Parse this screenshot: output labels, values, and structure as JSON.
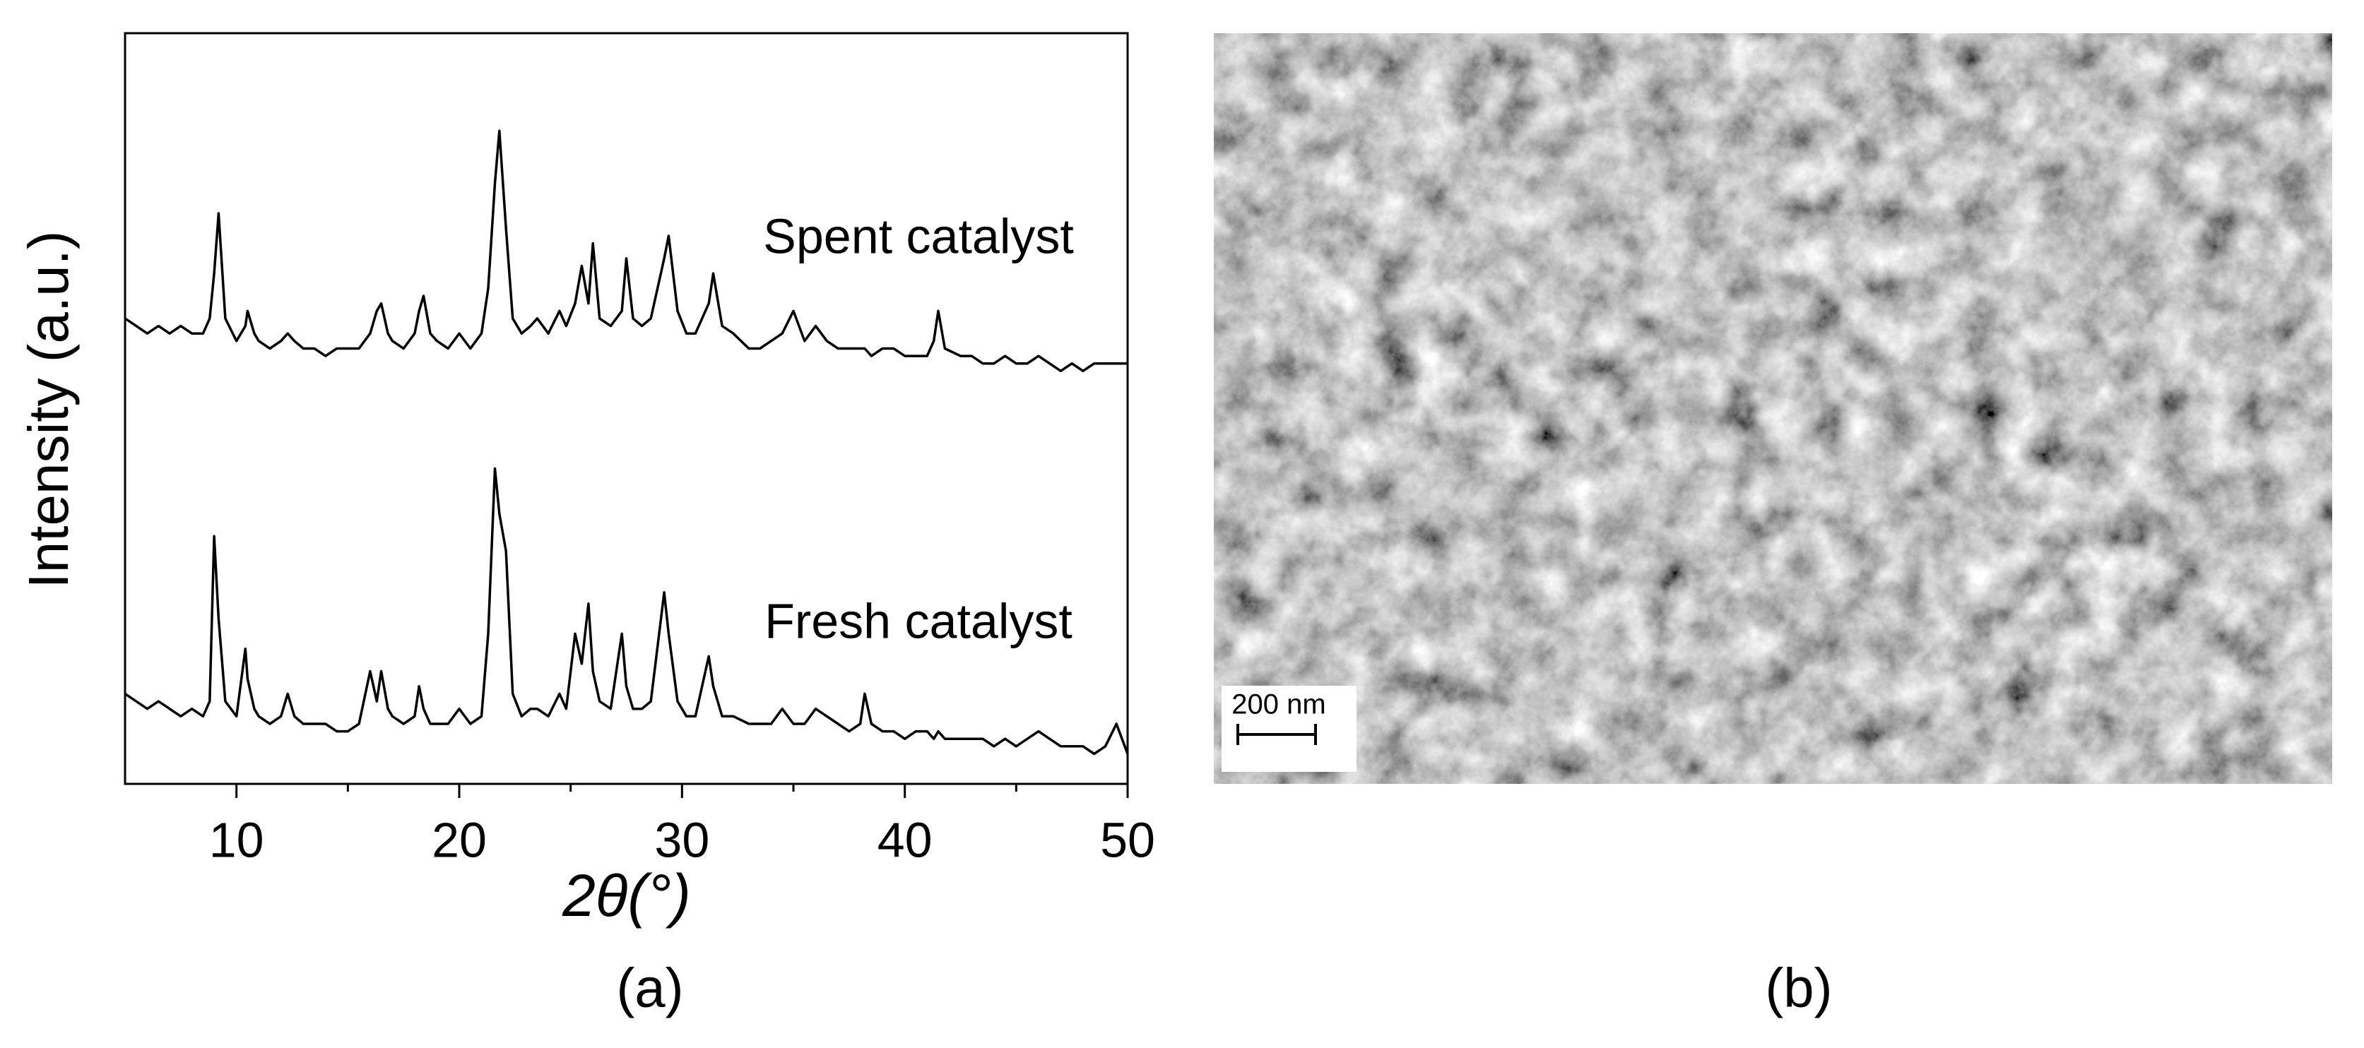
{
  "chart_data": {
    "type": "line",
    "ylabel": "Intensity (a.u.)",
    "xlabel": "2θ(°)",
    "panel_label": "(a)",
    "x": [
      5,
      5.5,
      6,
      6.5,
      7,
      7.5,
      8,
      8.5,
      8.8,
      9.0,
      9.2,
      9.5,
      10,
      10.4,
      10.5,
      10.8,
      11,
      11.5,
      12,
      12.3,
      12.6,
      13,
      13.5,
      14,
      14.5,
      15,
      15.5,
      16,
      16.3,
      16.5,
      16.8,
      17,
      17.5,
      18,
      18.2,
      18.4,
      18.7,
      19,
      19.5,
      20,
      20.5,
      21,
      21.3,
      21.6,
      21.8,
      22.1,
      22.4,
      22.8,
      23.2,
      23.5,
      24,
      24.5,
      24.8,
      25.2,
      25.5,
      25.8,
      26,
      26.3,
      26.8,
      27.3,
      27.5,
      27.8,
      28.2,
      28.6,
      29.2,
      29.4,
      29.8,
      30.2,
      30.6,
      31.2,
      31.4,
      31.8,
      32.3,
      33,
      33.5,
      34,
      34.5,
      35,
      35.5,
      36,
      36.5,
      37,
      37.5,
      38,
      38.2,
      38.5,
      39,
      39.5,
      40,
      40.5,
      41,
      41.3,
      41.5,
      41.8,
      42.5,
      43,
      43.5,
      44,
      44.5,
      45,
      45.5,
      46,
      46.5,
      47,
      47.5,
      48,
      48.5,
      49,
      49.5,
      50
    ],
    "series": [
      {
        "name": "Spent catalyst",
        "color": "#000000",
        "values": [
          62,
          61,
          60,
          61,
          60,
          61,
          60,
          60,
          62,
          68,
          76,
          62,
          59,
          61,
          63,
          60,
          59,
          58,
          59,
          60,
          59,
          58,
          58,
          57,
          58,
          58,
          58,
          60,
          63,
          64,
          60,
          59,
          58,
          60,
          63,
          65,
          60,
          59,
          58,
          60,
          58,
          60,
          66,
          80,
          87,
          74,
          62,
          60,
          61,
          62,
          60,
          63,
          61,
          64,
          69,
          64,
          72,
          62,
          61,
          63,
          70,
          62,
          61,
          62,
          70,
          73,
          63,
          60,
          60,
          64,
          68,
          61,
          60,
          58,
          58,
          59,
          60,
          63,
          59,
          61,
          59,
          58,
          58,
          58,
          58,
          57,
          58,
          58,
          57,
          57,
          57,
          59,
          63,
          58,
          57,
          57,
          56,
          56,
          57,
          56,
          56,
          57,
          56,
          55,
          56,
          55,
          56,
          56,
          56,
          56
        ]
      },
      {
        "name": "Fresh catalyst",
        "color": "#000000",
        "values": [
          12,
          11,
          10,
          11,
          10,
          9,
          10,
          9,
          11,
          33,
          22,
          11,
          9,
          18,
          14,
          10,
          9,
          8,
          9,
          12,
          9,
          8,
          8,
          8,
          7,
          7,
          8,
          15,
          11,
          15,
          10,
          9,
          8,
          9,
          13,
          10,
          8,
          8,
          8,
          10,
          8,
          9,
          20,
          42,
          36,
          31,
          12,
          9,
          10,
          10,
          9,
          12,
          10,
          20,
          16,
          24,
          15,
          11,
          10,
          20,
          13,
          10,
          10,
          11,
          25.5,
          20,
          11,
          9,
          9,
          17,
          13,
          9,
          9,
          8,
          8,
          8,
          10,
          8,
          8,
          10,
          9,
          8,
          7,
          8,
          12,
          8,
          7,
          7,
          6,
          7,
          7,
          6,
          7,
          6,
          6,
          6,
          6,
          5,
          6,
          5,
          6,
          7,
          6,
          5,
          5,
          5,
          4,
          5,
          8,
          4
        ]
      }
    ],
    "xlim": [
      5,
      50
    ],
    "xticks": [
      10,
      20,
      30,
      40,
      50
    ],
    "xminorticks": [
      15,
      25,
      35,
      45
    ],
    "ylim": [
      0,
      100
    ],
    "grid": false
  },
  "image_panel": {
    "label": "(b)",
    "scale_bar": "200 nm"
  }
}
